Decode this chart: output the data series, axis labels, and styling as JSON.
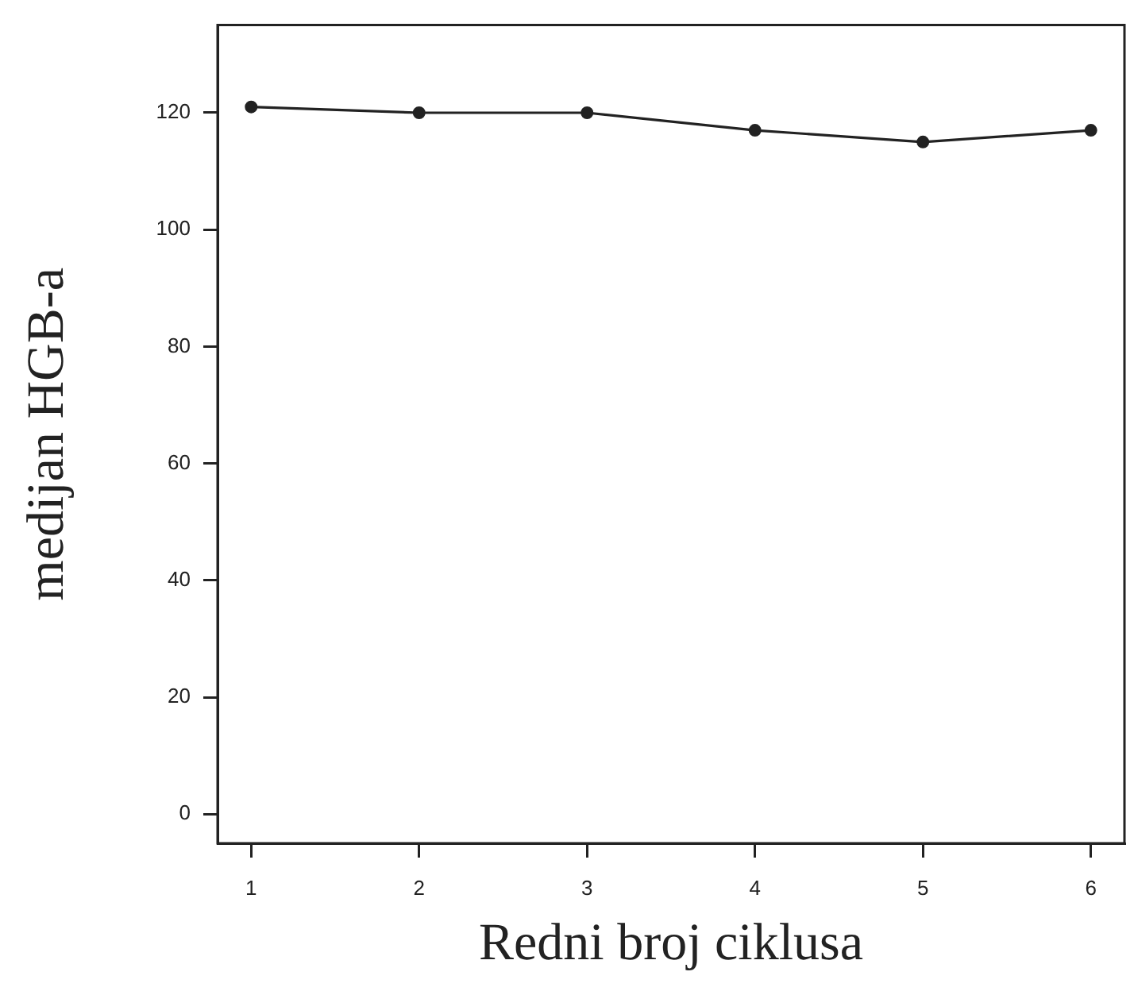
{
  "chart_data": {
    "type": "line",
    "xlabel": "Redni broj ciklusa",
    "ylabel": "medijan HGB-a",
    "x": [
      1,
      2,
      3,
      4,
      5,
      6
    ],
    "values": [
      121,
      120,
      120,
      117,
      115,
      117
    ],
    "color": "#222222",
    "xlim": [
      0.8,
      6.2
    ],
    "xticks": [
      1,
      2,
      3,
      4,
      5,
      6
    ],
    "ylim": [
      -5,
      135
    ],
    "yticks": [
      0,
      20,
      40,
      60,
      80,
      100,
      120
    ],
    "grid": false,
    "legend": false,
    "marker": "circle",
    "line_style": "solid"
  }
}
